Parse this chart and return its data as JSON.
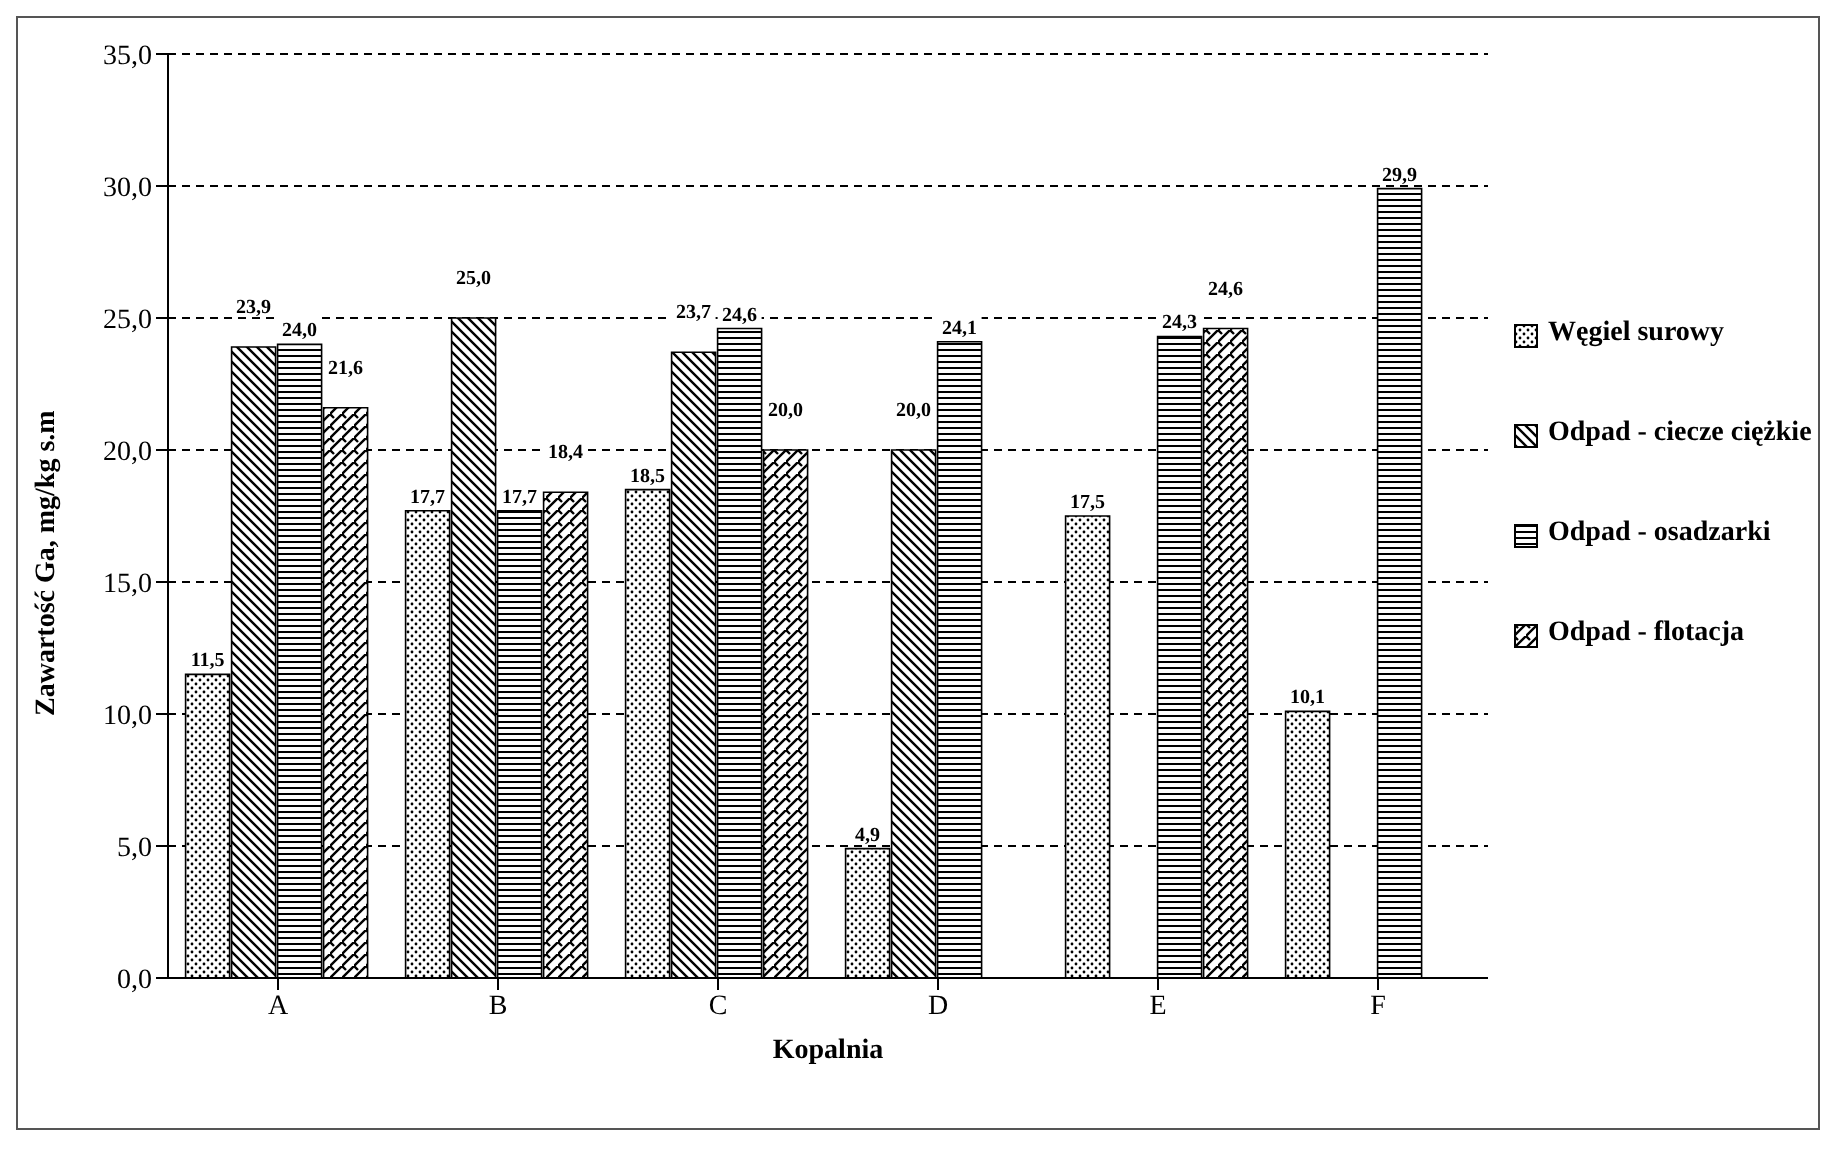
{
  "chart_data": {
    "type": "bar",
    "xlabel": "Kopalnia",
    "ylabel": "Zawartość Ga, mg/kg s.m",
    "categories": [
      "A",
      "B",
      "C",
      "D",
      "E",
      "F"
    ],
    "series": [
      {
        "name": "Węgiel surowy",
        "color": "#000000",
        "values": [
          11.5,
          17.7,
          18.5,
          4.9,
          17.5,
          10.1
        ],
        "value_labels": [
          "11,5",
          "17,7",
          "18,5",
          "4,9",
          "17,5",
          "10,1"
        ]
      },
      {
        "name": "Odpad - ciecze ciężkie",
        "color": "#000000",
        "values": [
          23.9,
          25.0,
          23.7,
          20.0,
          null,
          null
        ],
        "value_labels": [
          "23,9",
          "25,0",
          "23,7",
          "20,0",
          null,
          null
        ]
      },
      {
        "name": "Odpad - osadzarki",
        "color": "#000000",
        "values": [
          24.0,
          17.7,
          24.6,
          24.1,
          24.3,
          29.9
        ],
        "value_labels": [
          "24,0",
          "17,7",
          "24,6",
          "24,1",
          "24,3",
          "29,9"
        ]
      },
      {
        "name": "Odpad - flotacja",
        "color": "#000000",
        "values": [
          21.6,
          18.4,
          20.0,
          null,
          24.6,
          null
        ],
        "value_labels": [
          "21,6",
          "18,4",
          "20,0",
          null,
          "24,6",
          null
        ]
      }
    ],
    "ylim": [
      0,
      35
    ],
    "yticks": [
      {
        "value": 0,
        "label": "0,0"
      },
      {
        "value": 5,
        "label": "5,0"
      },
      {
        "value": 10,
        "label": "10,0"
      },
      {
        "value": 15,
        "label": "15,0"
      },
      {
        "value": 20,
        "label": "20,0"
      },
      {
        "value": 25,
        "label": "25,0"
      },
      {
        "value": 30,
        "label": "30,0"
      },
      {
        "value": 35,
        "label": "35,0"
      }
    ],
    "grid": "y",
    "legend": "right"
  }
}
